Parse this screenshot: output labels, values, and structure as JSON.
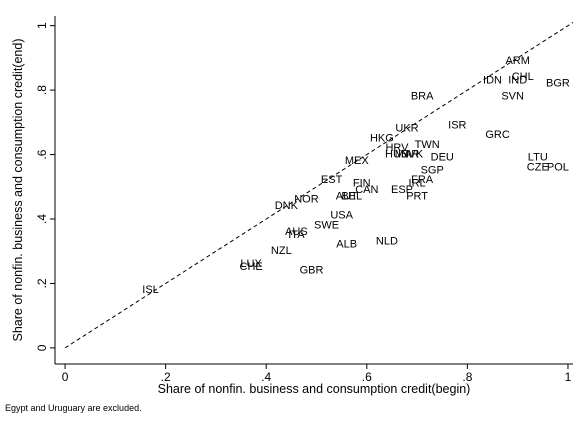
{
  "chart_data": {
    "type": "scatter",
    "xlabel": "Share of nonfin. business and consumption credit(begin)",
    "ylabel": "Share of nonfin. business and consumption credit(end)",
    "note": "Egypt and Uruguary are excluded.",
    "xlim": [
      -0.02,
      1.01
    ],
    "ylim": [
      -0.05,
      1.03
    ],
    "xticks": [
      0,
      {
        "value": 0.2,
        "label": ".2"
      },
      {
        "value": 0.4,
        "label": ".4"
      },
      {
        "value": 0.6,
        "label": ".6"
      },
      {
        "value": 0.8,
        "label": ".8"
      },
      1
    ],
    "yticks": [
      0,
      {
        "value": 0.2,
        "label": ".2"
      },
      {
        "value": 0.4,
        "label": ".4"
      },
      {
        "value": 0.6,
        "label": ".6"
      },
      {
        "value": 0.8,
        "label": ".8"
      },
      1
    ],
    "diagonal": true,
    "point_labels": [
      "ARM",
      "CHL",
      "IND",
      "IDN",
      "BGR",
      "SVN",
      "BRA",
      "ISR",
      "GRC",
      "UKR",
      "HKG",
      "TWN",
      "HRV",
      "HUN",
      "MAR",
      "SVK",
      "DEU",
      "LTU",
      "CZE",
      "POL",
      "MEX",
      "SGP",
      "FRA",
      "EST",
      "FIN",
      "IRL",
      "CAN",
      "ESP",
      "AUT",
      "BEL",
      "PRT",
      "NOR",
      "DNK",
      "USA",
      "SWE",
      "AUS",
      "ITA",
      "NLD",
      "ALB",
      "NZL",
      "LUX",
      "CHE",
      "GBR",
      "ISL"
    ],
    "x": [
      0.9,
      0.91,
      0.9,
      0.85,
      0.98,
      0.89,
      0.71,
      0.78,
      0.86,
      0.68,
      0.63,
      0.72,
      0.66,
      0.66,
      0.68,
      0.69,
      0.75,
      0.94,
      0.94,
      0.98,
      0.58,
      0.73,
      0.71,
      0.53,
      0.59,
      0.7,
      0.6,
      0.67,
      0.56,
      0.57,
      0.7,
      0.48,
      0.44,
      0.55,
      0.52,
      0.46,
      0.46,
      0.64,
      0.56,
      0.43,
      0.37,
      0.37,
      0.49,
      0.17
    ],
    "series": [
      {
        "color": "#1a1a1a",
        "values": [
          0.89,
          0.84,
          0.83,
          0.83,
          0.82,
          0.78,
          0.78,
          0.69,
          0.66,
          0.68,
          0.65,
          0.63,
          0.62,
          0.6,
          0.6,
          0.6,
          0.59,
          0.59,
          0.56,
          0.56,
          0.58,
          0.55,
          0.52,
          0.52,
          0.51,
          0.51,
          0.49,
          0.49,
          0.47,
          0.47,
          0.47,
          0.46,
          0.44,
          0.41,
          0.38,
          0.36,
          0.35,
          0.33,
          0.32,
          0.3,
          0.26,
          0.25,
          0.24,
          0.18
        ]
      }
    ]
  }
}
